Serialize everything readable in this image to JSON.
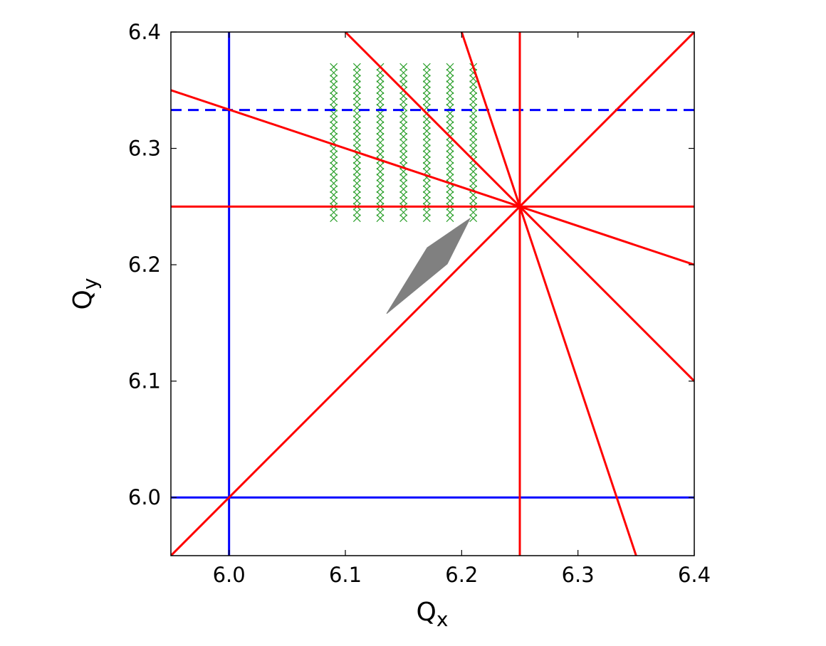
{
  "chart_data": {
    "type": "line",
    "xlabel": {
      "base": "Q",
      "sub": "x"
    },
    "ylabel": {
      "base": "Q",
      "sub": "y"
    },
    "xlim": [
      5.95,
      6.4
    ],
    "ylim": [
      5.95,
      6.4
    ],
    "xticks": [
      {
        "value": 6,
        "label": "6.0"
      },
      6.1,
      6.2,
      6.3,
      6.4
    ],
    "yticks": [
      {
        "value": 6,
        "label": "6.0"
      },
      6.1,
      6.2,
      6.3,
      6.4
    ],
    "series": [
      {
        "color": "#0000ff",
        "x": [
          6,
          6
        ],
        "values": [
          5.95,
          6.4
        ]
      },
      {
        "color": "#0000ff",
        "x": [
          5.95,
          6.4
        ],
        "values": [
          6,
          6
        ]
      },
      {
        "color": "#0000ff",
        "dashed": true,
        "x": [
          5.95,
          6.4
        ],
        "values": [
          6.333,
          6.333
        ]
      },
      {
        "color": "#ff0000",
        "x": [
          6.25,
          6.25
        ],
        "values": [
          5.95,
          6.4
        ]
      },
      {
        "color": "#ff0000",
        "x": [
          5.95,
          6.4
        ],
        "values": [
          6.25,
          6.25
        ]
      },
      {
        "color": "#ff0000",
        "x": [
          5.95,
          6.4
        ],
        "values": [
          5.95,
          6.4
        ]
      },
      {
        "color": "#ff0000",
        "x": [
          5.95,
          6.4
        ],
        "values": [
          6.35,
          6.2
        ]
      },
      {
        "color": "#ff0000",
        "x": [
          6.1,
          6.4
        ],
        "values": [
          6.4,
          6.1
        ]
      },
      {
        "color": "#ff0000",
        "x": [
          6.2,
          6.35
        ],
        "values": [
          6.4,
          5.95
        ]
      }
    ],
    "markers": [
      {
        "color": "#2ca02c",
        "x": [
          6.09,
          6.09,
          6.09,
          6.09,
          6.09,
          6.09,
          6.09,
          6.09,
          6.09,
          6.09,
          6.09,
          6.09,
          6.09,
          6.09,
          6.09,
          6.09,
          6.09,
          6.09,
          6.09,
          6.09,
          6.09,
          6.09,
          6.09,
          6.09,
          6.09,
          6.09,
          6.09
        ],
        "values": [
          6.24,
          6.245,
          6.25,
          6.255,
          6.26,
          6.265,
          6.27,
          6.275,
          6.28,
          6.285,
          6.29,
          6.295,
          6.3,
          6.305,
          6.31,
          6.315,
          6.32,
          6.325,
          6.33,
          6.335,
          6.34,
          6.345,
          6.35,
          6.355,
          6.36,
          6.365,
          6.37
        ]
      },
      {
        "color": "#2ca02c",
        "x": [
          6.11,
          6.11,
          6.11,
          6.11,
          6.11,
          6.11,
          6.11,
          6.11,
          6.11,
          6.11,
          6.11,
          6.11,
          6.11,
          6.11,
          6.11,
          6.11,
          6.11,
          6.11,
          6.11,
          6.11,
          6.11,
          6.11,
          6.11,
          6.11,
          6.11,
          6.11,
          6.11
        ],
        "values": [
          6.24,
          6.245,
          6.25,
          6.255,
          6.26,
          6.265,
          6.27,
          6.275,
          6.28,
          6.285,
          6.29,
          6.295,
          6.3,
          6.305,
          6.31,
          6.315,
          6.32,
          6.325,
          6.33,
          6.335,
          6.34,
          6.345,
          6.35,
          6.355,
          6.36,
          6.365,
          6.37
        ]
      },
      {
        "color": "#2ca02c",
        "x": [
          6.13,
          6.13,
          6.13,
          6.13,
          6.13,
          6.13,
          6.13,
          6.13,
          6.13,
          6.13,
          6.13,
          6.13,
          6.13,
          6.13,
          6.13,
          6.13,
          6.13,
          6.13,
          6.13,
          6.13,
          6.13,
          6.13,
          6.13,
          6.13,
          6.13,
          6.13,
          6.13
        ],
        "values": [
          6.24,
          6.245,
          6.25,
          6.255,
          6.26,
          6.265,
          6.27,
          6.275,
          6.28,
          6.285,
          6.29,
          6.295,
          6.3,
          6.305,
          6.31,
          6.315,
          6.32,
          6.325,
          6.33,
          6.335,
          6.34,
          6.345,
          6.35,
          6.355,
          6.36,
          6.365,
          6.37
        ]
      },
      {
        "color": "#2ca02c",
        "x": [
          6.15,
          6.15,
          6.15,
          6.15,
          6.15,
          6.15,
          6.15,
          6.15,
          6.15,
          6.15,
          6.15,
          6.15,
          6.15,
          6.15,
          6.15,
          6.15,
          6.15,
          6.15,
          6.15,
          6.15,
          6.15,
          6.15,
          6.15,
          6.15,
          6.15,
          6.15,
          6.15
        ],
        "values": [
          6.24,
          6.245,
          6.25,
          6.255,
          6.26,
          6.265,
          6.27,
          6.275,
          6.28,
          6.285,
          6.29,
          6.295,
          6.3,
          6.305,
          6.31,
          6.315,
          6.32,
          6.325,
          6.33,
          6.335,
          6.34,
          6.345,
          6.35,
          6.355,
          6.36,
          6.365,
          6.37
        ]
      },
      {
        "color": "#2ca02c",
        "x": [
          6.17,
          6.17,
          6.17,
          6.17,
          6.17,
          6.17,
          6.17,
          6.17,
          6.17,
          6.17,
          6.17,
          6.17,
          6.17,
          6.17,
          6.17,
          6.17,
          6.17,
          6.17,
          6.17,
          6.17,
          6.17,
          6.17,
          6.17,
          6.17,
          6.17,
          6.17,
          6.17
        ],
        "values": [
          6.24,
          6.245,
          6.25,
          6.255,
          6.26,
          6.265,
          6.27,
          6.275,
          6.28,
          6.285,
          6.29,
          6.295,
          6.3,
          6.305,
          6.31,
          6.315,
          6.32,
          6.325,
          6.33,
          6.335,
          6.34,
          6.345,
          6.35,
          6.355,
          6.36,
          6.365,
          6.37
        ]
      },
      {
        "color": "#2ca02c",
        "x": [
          6.19,
          6.19,
          6.19,
          6.19,
          6.19,
          6.19,
          6.19,
          6.19,
          6.19,
          6.19,
          6.19,
          6.19,
          6.19,
          6.19,
          6.19,
          6.19,
          6.19,
          6.19,
          6.19,
          6.19,
          6.19,
          6.19,
          6.19,
          6.19,
          6.19,
          6.19,
          6.19
        ],
        "values": [
          6.24,
          6.245,
          6.25,
          6.255,
          6.26,
          6.265,
          6.27,
          6.275,
          6.28,
          6.285,
          6.29,
          6.295,
          6.3,
          6.305,
          6.31,
          6.315,
          6.32,
          6.325,
          6.33,
          6.335,
          6.34,
          6.345,
          6.35,
          6.355,
          6.36,
          6.365,
          6.37
        ]
      },
      {
        "color": "#2ca02c",
        "x": [
          6.21,
          6.21,
          6.21,
          6.21,
          6.21,
          6.21,
          6.21,
          6.21,
          6.21,
          6.21,
          6.21,
          6.21,
          6.21,
          6.21,
          6.21,
          6.21,
          6.21,
          6.21,
          6.21,
          6.21,
          6.21,
          6.21,
          6.21,
          6.21,
          6.21,
          6.21,
          6.21
        ],
        "values": [
          6.24,
          6.245,
          6.25,
          6.255,
          6.26,
          6.265,
          6.27,
          6.275,
          6.28,
          6.285,
          6.29,
          6.295,
          6.3,
          6.305,
          6.31,
          6.315,
          6.32,
          6.325,
          6.33,
          6.335,
          6.34,
          6.345,
          6.35,
          6.355,
          6.36,
          6.365,
          6.37
        ]
      }
    ],
    "polygons": [
      {
        "color": "#808080",
        "x": [
          6.1355,
          6.1704,
          6.2072,
          6.1876
        ],
        "values": [
          6.158,
          6.2147,
          6.2398,
          6.2007
        ]
      }
    ]
  }
}
